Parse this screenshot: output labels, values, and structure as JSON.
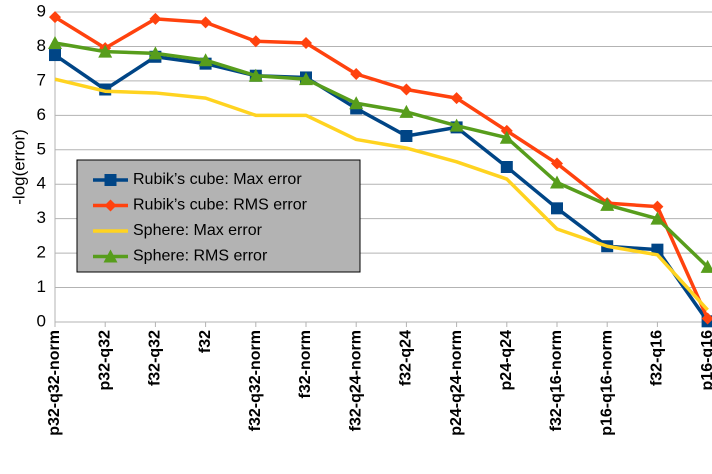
{
  "chart_data": {
    "type": "line",
    "y_label": "-log(error)",
    "categories": [
      "p32-q32-norm",
      "p32-q32",
      "f32-q32",
      "f32",
      "f32-q32-norm",
      "f32-norm",
      "f32-q24-norm",
      "f32-q24",
      "p24-q24-norm",
      "p24-q24",
      "f32-q16-norm",
      "p16-q16-norm",
      "f32-q16",
      "p16-q16"
    ],
    "series": [
      {
        "name": "Rubik’s cube: Max error",
        "color": "#004586",
        "marker": "square",
        "values": [
          7.75,
          6.75,
          7.7,
          7.5,
          7.15,
          7.1,
          6.2,
          5.4,
          5.65,
          4.5,
          3.3,
          2.2,
          2.1,
          0.02
        ]
      },
      {
        "name": "Rubik’s cube: RMS error",
        "color": "#ff420e",
        "marker": "diamond",
        "values": [
          8.85,
          7.95,
          8.8,
          8.7,
          8.15,
          8.1,
          7.2,
          6.75,
          6.5,
          5.55,
          4.6,
          3.45,
          3.35,
          0.1
        ]
      },
      {
        "name": "Sphere: Max error",
        "color": "#ffd320",
        "marker": "none",
        "values": [
          7.05,
          6.7,
          6.65,
          6.5,
          6.0,
          6.0,
          5.3,
          5.05,
          4.65,
          4.15,
          2.7,
          2.2,
          1.95,
          0.35
        ]
      },
      {
        "name": "Sphere: RMS error",
        "color": "#579d1c",
        "marker": "triangle",
        "values": [
          8.1,
          7.85,
          7.8,
          7.6,
          7.15,
          7.05,
          6.35,
          6.1,
          5.7,
          5.35,
          4.05,
          3.4,
          3.0,
          1.6
        ]
      }
    ],
    "ylim": [
      0,
      9
    ],
    "yticks": [
      0,
      1,
      2,
      3,
      4,
      5,
      6,
      7,
      8,
      9
    ],
    "grid": true,
    "legend": "left"
  }
}
